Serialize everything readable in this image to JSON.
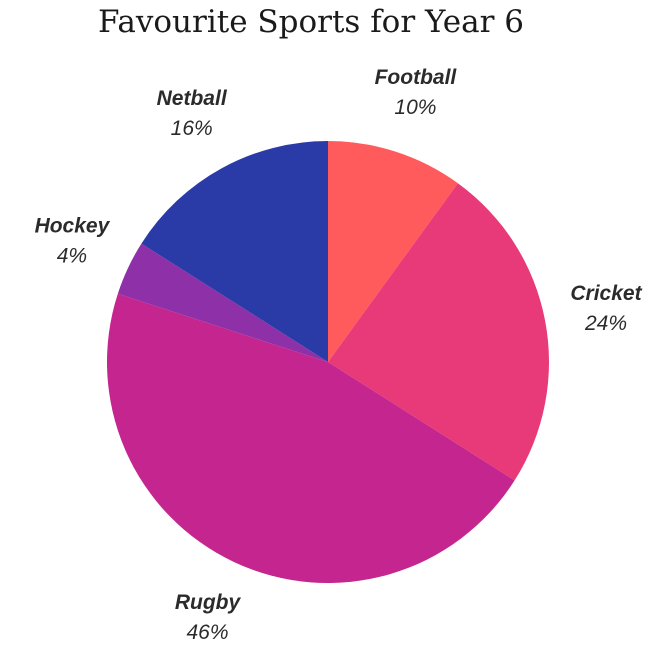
{
  "chart_data": {
    "type": "pie",
    "title": "Favourite Sports for Year 6",
    "slices": [
      {
        "name": "Football",
        "value": 10,
        "label": "10%",
        "color": "#ff5a5c"
      },
      {
        "name": "Cricket",
        "value": 24,
        "label": "24%",
        "color": "#e83a79"
      },
      {
        "name": "Rugby",
        "value": 46,
        "label": "46%",
        "color": "#c4258f"
      },
      {
        "name": "Hockey",
        "value": 4,
        "label": "4%",
        "color": "#8e30a8"
      },
      {
        "name": "Netball",
        "value": 16,
        "label": "16%",
        "color": "#2a3aa6"
      }
    ],
    "start": "12 o'clock",
    "direction": "clockwise",
    "legend": "none",
    "labels": "outside"
  }
}
